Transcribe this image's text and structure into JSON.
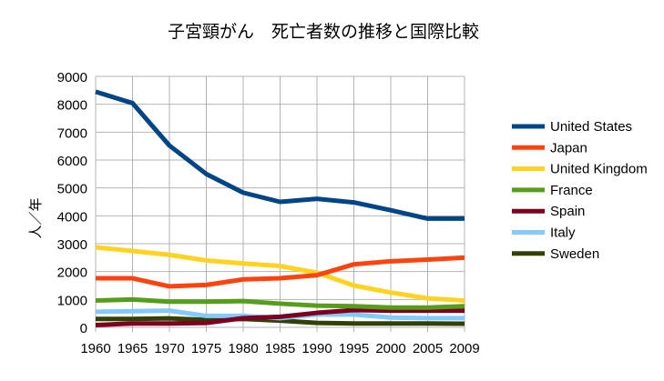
{
  "chart_data": {
    "type": "line",
    "title": "子宮頸がん　死亡者数の推移と国際比較",
    "xlabel": "",
    "ylabel": "人／年",
    "categories": [
      "1960",
      "1965",
      "1970",
      "1975",
      "1980",
      "1985",
      "1990",
      "1995",
      "2000",
      "2005",
      "2009"
    ],
    "ylim": [
      0,
      9000
    ],
    "yticks": [
      0,
      1000,
      2000,
      3000,
      4000,
      5000,
      6000,
      7000,
      8000,
      9000
    ],
    "grid": true,
    "legend_position": "right",
    "series": [
      {
        "name": "United States",
        "color": "#004586",
        "values": [
          8450,
          8040,
          6520,
          5500,
          4830,
          4500,
          4610,
          4480,
          4200,
          3900,
          3900
        ]
      },
      {
        "name": "Japan",
        "color": "#ff420e",
        "values": [
          1760,
          1760,
          1470,
          1520,
          1720,
          1760,
          1870,
          2260,
          2370,
          2430,
          2500
        ]
      },
      {
        "name": "United Kingdom",
        "color": "#ffd320",
        "values": [
          2870,
          2740,
          2600,
          2400,
          2290,
          2200,
          1960,
          1500,
          1250,
          1040,
          960
        ]
      },
      {
        "name": "France",
        "color": "#579d1c",
        "values": [
          960,
          1000,
          920,
          920,
          940,
          850,
          780,
          760,
          710,
          710,
          760
        ]
      },
      {
        "name": "Spain",
        "color": "#7e0021",
        "values": [
          80,
          140,
          140,
          160,
          330,
          380,
          520,
          620,
          600,
          600,
          600
        ]
      },
      {
        "name": "Italy",
        "color": "#83caff",
        "values": [
          560,
          580,
          600,
          410,
          410,
          330,
          460,
          460,
          350,
          330,
          330
        ]
      },
      {
        "name": "Sweden",
        "color": "#314004",
        "values": [
          300,
          300,
          320,
          270,
          300,
          240,
          160,
          140,
          140,
          140,
          130
        ]
      }
    ]
  }
}
